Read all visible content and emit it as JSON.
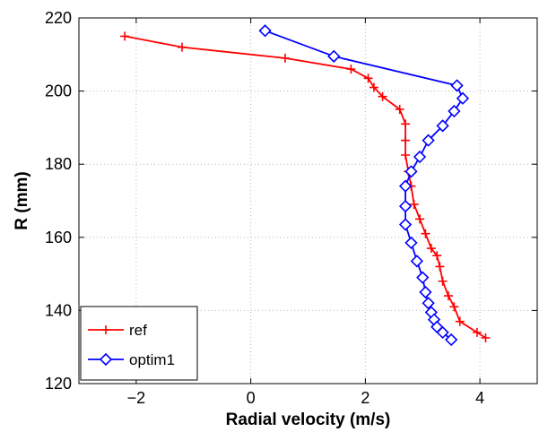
{
  "chart_data": {
    "type": "line",
    "xlabel": "Radial velocity (m/s)",
    "ylabel": "R (mm)",
    "xlim": [
      -3,
      5
    ],
    "ylim": [
      120,
      220
    ],
    "xticks": [
      -2,
      0,
      2,
      4
    ],
    "yticks": [
      120,
      140,
      160,
      180,
      200,
      220
    ],
    "grid": true,
    "legend_position": "bottom-left",
    "series": [
      {
        "name": "ref",
        "color": "#ff0000",
        "marker": "plus",
        "points": [
          [
            -2.2,
            215
          ],
          [
            -1.2,
            212
          ],
          [
            0.6,
            209
          ],
          [
            1.75,
            206
          ],
          [
            2.05,
            203.5
          ],
          [
            2.15,
            201
          ],
          [
            2.3,
            198.5
          ],
          [
            2.6,
            195
          ],
          [
            2.7,
            191
          ],
          [
            2.7,
            186.5
          ],
          [
            2.7,
            182.5
          ],
          [
            2.75,
            178
          ],
          [
            2.8,
            174
          ],
          [
            2.85,
            169
          ],
          [
            2.95,
            165
          ],
          [
            3.05,
            161
          ],
          [
            3.15,
            157
          ],
          [
            3.25,
            155
          ],
          [
            3.3,
            152
          ],
          [
            3.35,
            148
          ],
          [
            3.45,
            144
          ],
          [
            3.55,
            141
          ],
          [
            3.65,
            137
          ],
          [
            3.95,
            134
          ],
          [
            4.1,
            132.5
          ]
        ]
      },
      {
        "name": "optim1",
        "color": "#0000ff",
        "marker": "diamond",
        "points": [
          [
            0.25,
            216.5
          ],
          [
            1.45,
            209.5
          ],
          [
            3.6,
            201.5
          ],
          [
            3.7,
            198
          ],
          [
            3.55,
            194.5
          ],
          [
            3.35,
            190.5
          ],
          [
            3.1,
            186.5
          ],
          [
            2.95,
            182
          ],
          [
            2.8,
            178
          ],
          [
            2.7,
            174
          ],
          [
            2.7,
            168.5
          ],
          [
            2.7,
            163.5
          ],
          [
            2.8,
            158.5
          ],
          [
            2.9,
            153.5
          ],
          [
            3.0,
            149
          ],
          [
            3.05,
            145
          ],
          [
            3.1,
            142
          ],
          [
            3.15,
            139.5
          ],
          [
            3.2,
            137.5
          ],
          [
            3.25,
            135.5
          ],
          [
            3.35,
            134
          ],
          [
            3.5,
            132
          ]
        ]
      }
    ]
  }
}
